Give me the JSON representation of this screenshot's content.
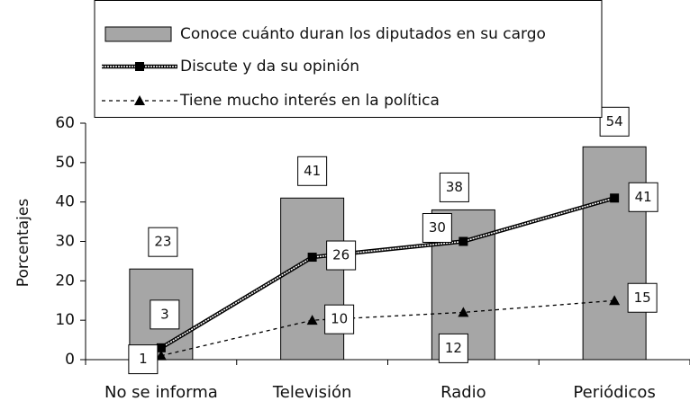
{
  "chart_data": {
    "type": "bar",
    "y_label": "Porcentajes",
    "categories": [
      "No se informa",
      "Televisión",
      "Radio",
      "Periódicos"
    ],
    "series": [
      {
        "name": "Conoce cuánto duran los diputados en su cargo",
        "type": "bar",
        "color": "#a6a6a6",
        "values": [
          23,
          41,
          38,
          54
        ]
      },
      {
        "name": "Discute y da su opinión",
        "type": "line",
        "marker": "square",
        "color": "#000000",
        "values": [
          3,
          26,
          30,
          41
        ]
      },
      {
        "name": "Tiene mucho interés en la política",
        "type": "line",
        "marker": "triangle",
        "color": "#000000",
        "values": [
          1,
          10,
          12,
          15
        ]
      }
    ],
    "ylim": [
      0,
      60
    ],
    "yticks": [
      0,
      10,
      20,
      30,
      40,
      50,
      60
    ]
  }
}
